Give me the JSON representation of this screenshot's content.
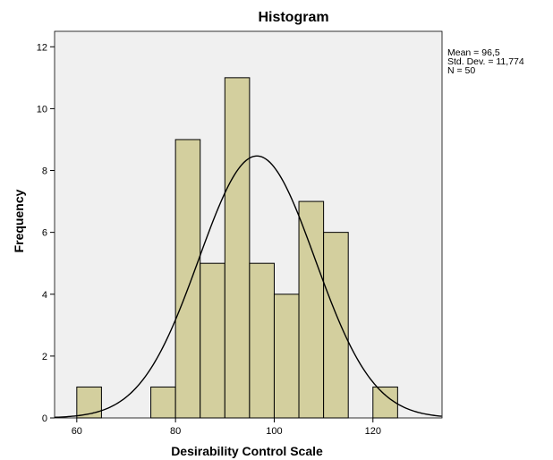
{
  "chart_data": {
    "type": "bar",
    "title": "Histogram",
    "xlabel": "Desirability Control Scale",
    "ylabel": "Frequency",
    "xlim": [
      55.5,
      134
    ],
    "ylim": [
      0,
      12.5
    ],
    "x_ticks": [
      60,
      80,
      100,
      120
    ],
    "y_ticks": [
      0,
      2,
      4,
      6,
      8,
      10,
      12
    ],
    "bin_width": 5,
    "bins": [
      {
        "start": 60,
        "end": 65,
        "count": 1
      },
      {
        "start": 65,
        "end": 70,
        "count": 0
      },
      {
        "start": 70,
        "end": 75,
        "count": 0
      },
      {
        "start": 75,
        "end": 80,
        "count": 1
      },
      {
        "start": 80,
        "end": 85,
        "count": 9
      },
      {
        "start": 85,
        "end": 90,
        "count": 5
      },
      {
        "start": 90,
        "end": 95,
        "count": 11
      },
      {
        "start": 95,
        "end": 100,
        "count": 5
      },
      {
        "start": 100,
        "end": 105,
        "count": 4
      },
      {
        "start": 105,
        "end": 110,
        "count": 7
      },
      {
        "start": 110,
        "end": 115,
        "count": 6
      },
      {
        "start": 115,
        "end": 120,
        "count": 0
      },
      {
        "start": 120,
        "end": 125,
        "count": 1
      }
    ],
    "normal_curve": {
      "mean": 96.5,
      "sd": 11.774,
      "n": 50
    },
    "stats_lines": [
      "Mean = 96,5",
      "Std. Dev. = 11,774",
      "N = 50"
    ],
    "colors": {
      "bar_fill": "#d3cf9e",
      "bar_stroke": "#000000",
      "plot_background": "#f0f0f0",
      "curve": "#000000"
    },
    "grid": false,
    "legend": "top-right"
  }
}
